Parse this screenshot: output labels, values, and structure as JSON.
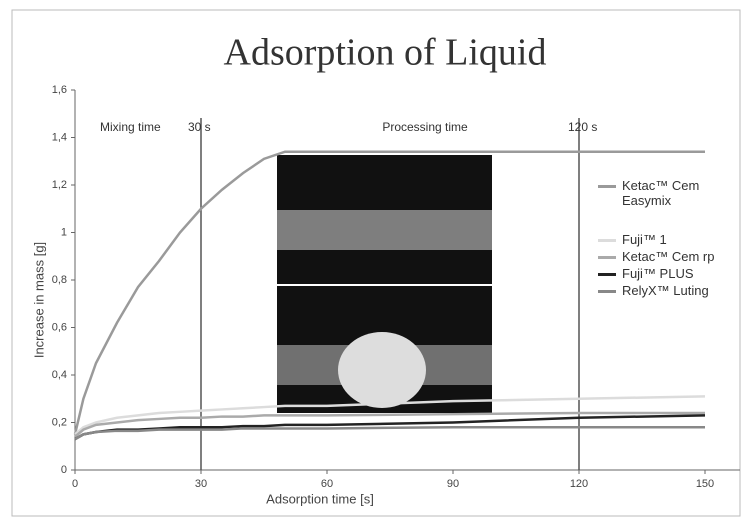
{
  "chart_data": {
    "type": "line",
    "title": "Adsorption of Liquid",
    "x_label": "Adsorption time [s]",
    "y_label": "Increase in mass [g]",
    "x": [
      0,
      2,
      5,
      10,
      15,
      20,
      25,
      30,
      35,
      40,
      45,
      50,
      60,
      90,
      120,
      150
    ],
    "series": [
      {
        "name": "Ketac™ Cem Easymix",
        "color": "#9a9a9a",
        "values": [
          0.15,
          0.3,
          0.45,
          0.62,
          0.77,
          0.88,
          1.0,
          1.1,
          1.18,
          1.25,
          1.31,
          1.34,
          1.34,
          1.34,
          1.34,
          1.34
        ]
      },
      {
        "name": "Fuji™ 1",
        "color": "#dcdcdc",
        "values": [
          0.15,
          0.18,
          0.2,
          0.22,
          0.23,
          0.24,
          0.245,
          0.25,
          0.255,
          0.26,
          0.265,
          0.27,
          0.27,
          0.29,
          0.3,
          0.31
        ]
      },
      {
        "name": "Ketac™ Cem rp",
        "color": "#aaaaaa",
        "values": [
          0.14,
          0.17,
          0.19,
          0.2,
          0.21,
          0.215,
          0.22,
          0.22,
          0.225,
          0.225,
          0.23,
          0.23,
          0.23,
          0.235,
          0.24,
          0.24
        ]
      },
      {
        "name": "Fuji™ PLUS",
        "color": "#222222",
        "values": [
          0.13,
          0.15,
          0.16,
          0.17,
          0.17,
          0.175,
          0.18,
          0.18,
          0.18,
          0.185,
          0.185,
          0.19,
          0.19,
          0.2,
          0.22,
          0.23
        ]
      },
      {
        "name": "RelyX™ Luting",
        "color": "#888888",
        "values": [
          0.13,
          0.15,
          0.16,
          0.165,
          0.165,
          0.17,
          0.17,
          0.17,
          0.17,
          0.175,
          0.175,
          0.175,
          0.175,
          0.18,
          0.18,
          0.18
        ]
      }
    ],
    "xlim": [
      0,
      150
    ],
    "xticks": [
      0,
      30,
      60,
      90,
      120,
      150
    ],
    "ylim": [
      0,
      1.6
    ],
    "yticks": [
      0,
      {
        "value": 0.2,
        "label": "0,2"
      },
      {
        "value": 0.4,
        "label": "0,4"
      },
      {
        "value": 0.6,
        "label": "0,6"
      },
      {
        "value": 0.8,
        "label": "0,8"
      },
      1,
      {
        "value": 1.2,
        "label": "1,2"
      },
      {
        "value": 1.4,
        "label": "1,4"
      },
      {
        "value": 1.6,
        "label": "1,6"
      }
    ],
    "vlines": [
      30,
      120
    ],
    "annotations": [
      "Mixing time",
      "30 s",
      "Processing time",
      "120 s"
    ],
    "grid": false
  }
}
